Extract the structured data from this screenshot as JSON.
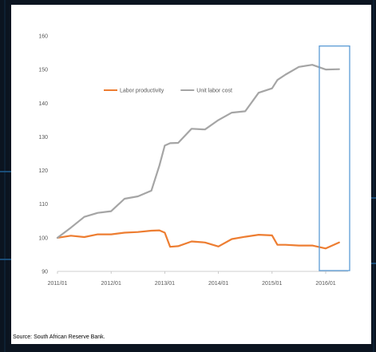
{
  "colors": {
    "background": "#0b1420",
    "grid_glow": "#1e5a8c",
    "card": "#ffffff",
    "labor_productivity": "#ed7d31",
    "unit_labor_cost": "#a5a5a5",
    "highlight_box": "#5b9bd5",
    "axis_text": "#595959"
  },
  "source": "Source: South African Reserve Bank.",
  "chart_data": {
    "type": "line",
    "title": "",
    "xlabel": "",
    "ylabel": "",
    "ylim": [
      90,
      160
    ],
    "yticks": [
      90,
      100,
      110,
      120,
      130,
      140,
      150,
      160
    ],
    "xlim": [
      2011.0,
      2016.4167
    ],
    "xtick_labels": [
      "2011/01",
      "2012/01",
      "2013/01",
      "2014/01",
      "2015/01",
      "2016/01"
    ],
    "xtick_values": [
      2011,
      2012,
      2013,
      2014,
      2015,
      2016
    ],
    "grid": false,
    "legend_position": "top-center",
    "highlight_region": {
      "from": "2016/01",
      "to": "2016/06",
      "ymin": 90,
      "ymax": 157
    },
    "series": [
      {
        "name": "Labor productivity",
        "color": "#ed7d31",
        "x": [
          2011.0,
          2011.25,
          2011.5,
          2011.75,
          2012.0,
          2012.25,
          2012.5,
          2012.75,
          2012.9,
          2013.0,
          2013.1,
          2013.25,
          2013.5,
          2013.75,
          2014.0,
          2014.25,
          2014.5,
          2014.75,
          2015.0,
          2015.1,
          2015.25,
          2015.5,
          2015.75,
          2016.0,
          2016.25
        ],
        "values": [
          100.0,
          100.6,
          100.2,
          101.0,
          101.0,
          101.5,
          101.7,
          102.1,
          102.2,
          101.5,
          97.3,
          97.5,
          98.9,
          98.6,
          97.4,
          99.6,
          100.3,
          100.9,
          100.7,
          97.9,
          97.9,
          97.7,
          97.7,
          96.8,
          98.6
        ]
      },
      {
        "name": "Unit labor cost",
        "color": "#a5a5a5",
        "x": [
          2011.0,
          2011.25,
          2011.5,
          2011.75,
          2012.0,
          2012.25,
          2012.5,
          2012.75,
          2012.9,
          2013.0,
          2013.1,
          2013.25,
          2013.5,
          2013.75,
          2014.0,
          2014.25,
          2014.5,
          2014.75,
          2015.0,
          2015.1,
          2015.25,
          2015.5,
          2015.75,
          2016.0,
          2016.25
        ],
        "values": [
          100.0,
          103.0,
          106.2,
          107.4,
          107.9,
          111.6,
          112.3,
          114.0,
          121.5,
          127.4,
          128.1,
          128.2,
          132.4,
          132.2,
          135.0,
          137.2,
          137.6,
          143.1,
          144.4,
          146.9,
          148.5,
          150.8,
          151.4,
          150.0,
          150.1
        ]
      }
    ]
  }
}
